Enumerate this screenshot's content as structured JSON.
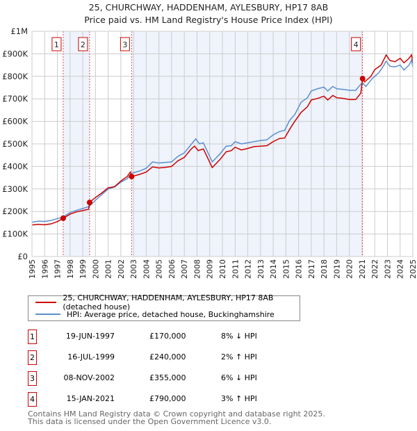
{
  "title": "25, CHURCHWAY, HADDENHAM, AYLESBURY, HP17 8AB",
  "subtitle": "Price paid vs. HM Land Registry's House Price Index (HPI)",
  "chart_data": {
    "type": "line",
    "xlim": [
      1995,
      2025
    ],
    "ylim": [
      0,
      1000000
    ],
    "y_ticks": [
      {
        "v": 0,
        "label": "£0"
      },
      {
        "v": 100000,
        "label": "£100K"
      },
      {
        "v": 200000,
        "label": "£200K"
      },
      {
        "v": 300000,
        "label": "£300K"
      },
      {
        "v": 400000,
        "label": "£400K"
      },
      {
        "v": 500000,
        "label": "£500K"
      },
      {
        "v": 600000,
        "label": "£600K"
      },
      {
        "v": 700000,
        "label": "£700K"
      },
      {
        "v": 800000,
        "label": "£800K"
      },
      {
        "v": 900000,
        "label": "£900K"
      },
      {
        "v": 1000000,
        "label": "£1M"
      }
    ],
    "x_ticks": [
      "1995",
      "1996",
      "1997",
      "1998",
      "1999",
      "2000",
      "2001",
      "2002",
      "2003",
      "2004",
      "2005",
      "2006",
      "2007",
      "2008",
      "2009",
      "2010",
      "2011",
      "2012",
      "2013",
      "2014",
      "2015",
      "2016",
      "2017",
      "2018",
      "2019",
      "2020",
      "2021",
      "2022",
      "2023",
      "2024",
      "2025"
    ],
    "grid": true,
    "colors": {
      "property": "#cc0000",
      "hpi": "#5b8fd0",
      "shade": "#eef3fc"
    },
    "series": [
      {
        "name": "25, CHURCHWAY, HADDENHAM, AYLESBURY, HP17 8AB (detached house)",
        "points": [
          [
            1995,
            140000
          ],
          [
            1995.5,
            143000
          ],
          [
            1996,
            141000
          ],
          [
            1996.5,
            145000
          ],
          [
            1997,
            155000
          ],
          [
            1997.46,
            170000
          ],
          [
            1998,
            188000
          ],
          [
            1998.5,
            198000
          ],
          [
            1999,
            204000
          ],
          [
            1999.46,
            210000
          ],
          [
            1999.54,
            240000
          ],
          [
            2000,
            262000
          ],
          [
            2000.5,
            282000
          ],
          [
            2001,
            305000
          ],
          [
            2001.5,
            310000
          ],
          [
            2002,
            335000
          ],
          [
            2002.5,
            355000
          ],
          [
            2002.75,
            375000
          ],
          [
            2002.85,
            355000
          ],
          [
            2003.5,
            365000
          ],
          [
            2004,
            375000
          ],
          [
            2004.5,
            398000
          ],
          [
            2005,
            393000
          ],
          [
            2005.5,
            396000
          ],
          [
            2006,
            400000
          ],
          [
            2006.5,
            425000
          ],
          [
            2007,
            440000
          ],
          [
            2007.5,
            475000
          ],
          [
            2007.8,
            490000
          ],
          [
            2008.1,
            470000
          ],
          [
            2008.5,
            478000
          ],
          [
            2009.2,
            395000
          ],
          [
            2009.8,
            430000
          ],
          [
            2010.3,
            465000
          ],
          [
            2010.7,
            470000
          ],
          [
            2011,
            485000
          ],
          [
            2011.5,
            473000
          ],
          [
            2012,
            480000
          ],
          [
            2012.5,
            488000
          ],
          [
            2013,
            490000
          ],
          [
            2013.5,
            492000
          ],
          [
            2014,
            510000
          ],
          [
            2014.5,
            524000
          ],
          [
            2014.9,
            526000
          ],
          [
            2015.3,
            565000
          ],
          [
            2015.7,
            600000
          ],
          [
            2016.2,
            640000
          ],
          [
            2016.7,
            665000
          ],
          [
            2017,
            695000
          ],
          [
            2017.5,
            702000
          ],
          [
            2018,
            712000
          ],
          [
            2018.3,
            695000
          ],
          [
            2018.7,
            715000
          ],
          [
            2019,
            705000
          ],
          [
            2019.5,
            702000
          ],
          [
            2020,
            697000
          ],
          [
            2020.5,
            697000
          ],
          [
            2020.9,
            725000
          ],
          [
            2021.04,
            790000
          ],
          [
            2021.2,
            775000
          ],
          [
            2021.7,
            800000
          ],
          [
            2022,
            830000
          ],
          [
            2022.5,
            850000
          ],
          [
            2022.9,
            895000
          ],
          [
            2023.2,
            870000
          ],
          [
            2023.6,
            865000
          ],
          [
            2024,
            880000
          ],
          [
            2024.3,
            860000
          ],
          [
            2024.7,
            880000
          ],
          [
            2024.9,
            895000
          ],
          [
            2025,
            860000
          ]
        ]
      },
      {
        "name": "HPI: Average price, detached house, Buckinghamshire",
        "points": [
          [
            1995,
            152000
          ],
          [
            1995.5,
            157000
          ],
          [
            1996,
            156000
          ],
          [
            1996.5,
            160000
          ],
          [
            1997,
            168000
          ],
          [
            1997.46,
            176000
          ],
          [
            1998,
            195000
          ],
          [
            1998.5,
            205000
          ],
          [
            1999,
            213000
          ],
          [
            1999.5,
            222000
          ],
          [
            2000,
            250000
          ],
          [
            2000.5,
            275000
          ],
          [
            2001,
            300000
          ],
          [
            2001.5,
            308000
          ],
          [
            2002,
            330000
          ],
          [
            2002.5,
            345000
          ],
          [
            2002.85,
            370000
          ],
          [
            2003.5,
            380000
          ],
          [
            2004,
            392000
          ],
          [
            2004.5,
            420000
          ],
          [
            2005,
            415000
          ],
          [
            2005.5,
            418000
          ],
          [
            2006,
            420000
          ],
          [
            2006.5,
            445000
          ],
          [
            2007,
            460000
          ],
          [
            2007.5,
            495000
          ],
          [
            2007.9,
            522000
          ],
          [
            2008.2,
            500000
          ],
          [
            2008.5,
            505000
          ],
          [
            2009.2,
            420000
          ],
          [
            2009.8,
            455000
          ],
          [
            2010.3,
            490000
          ],
          [
            2010.7,
            492000
          ],
          [
            2011,
            510000
          ],
          [
            2011.5,
            500000
          ],
          [
            2012,
            505000
          ],
          [
            2012.5,
            510000
          ],
          [
            2013,
            515000
          ],
          [
            2013.5,
            518000
          ],
          [
            2014,
            540000
          ],
          [
            2014.5,
            555000
          ],
          [
            2014.9,
            560000
          ],
          [
            2015.3,
            605000
          ],
          [
            2015.7,
            630000
          ],
          [
            2016.2,
            685000
          ],
          [
            2016.7,
            705000
          ],
          [
            2017,
            735000
          ],
          [
            2017.5,
            745000
          ],
          [
            2018,
            752000
          ],
          [
            2018.3,
            735000
          ],
          [
            2018.7,
            755000
          ],
          [
            2019,
            745000
          ],
          [
            2019.5,
            742000
          ],
          [
            2020,
            738000
          ],
          [
            2020.5,
            738000
          ],
          [
            2020.9,
            765000
          ],
          [
            2021.04,
            770000
          ],
          [
            2021.3,
            755000
          ],
          [
            2021.8,
            790000
          ],
          [
            2022.3,
            815000
          ],
          [
            2022.6,
            838000
          ],
          [
            2022.9,
            867000
          ],
          [
            2023.2,
            845000
          ],
          [
            2023.6,
            842000
          ],
          [
            2024,
            850000
          ],
          [
            2024.3,
            828000
          ],
          [
            2024.7,
            850000
          ],
          [
            2024.9,
            872000
          ],
          [
            2025,
            840000
          ]
        ]
      }
    ],
    "sales": [
      {
        "label": "1",
        "x": 1997.46,
        "y": 170000,
        "date": "19-JUN-1997",
        "price": "£170,000",
        "hpi": "8% ↓ HPI"
      },
      {
        "label": "2",
        "x": 1999.54,
        "y": 240000,
        "date": "16-JUL-1999",
        "price": "£240,000",
        "hpi": "2% ↑ HPI"
      },
      {
        "label": "3",
        "x": 2002.85,
        "y": 355000,
        "date": "08-NOV-2002",
        "price": "£355,000",
        "hpi": "6% ↓ HPI"
      },
      {
        "label": "4",
        "x": 2021.04,
        "y": 790000,
        "date": "15-JAN-2021",
        "price": "£790,000",
        "hpi": "3% ↑ HPI"
      }
    ]
  },
  "legend": {
    "property": "25, CHURCHWAY, HADDENHAM, AYLESBURY, HP17 8AB (detached house)",
    "hpi": "HPI: Average price, detached house, Buckinghamshire"
  },
  "footer": {
    "line1": "Contains HM Land Registry data © Crown copyright and database right 2025.",
    "line2": "This data is licensed under the Open Government Licence v3.0."
  }
}
